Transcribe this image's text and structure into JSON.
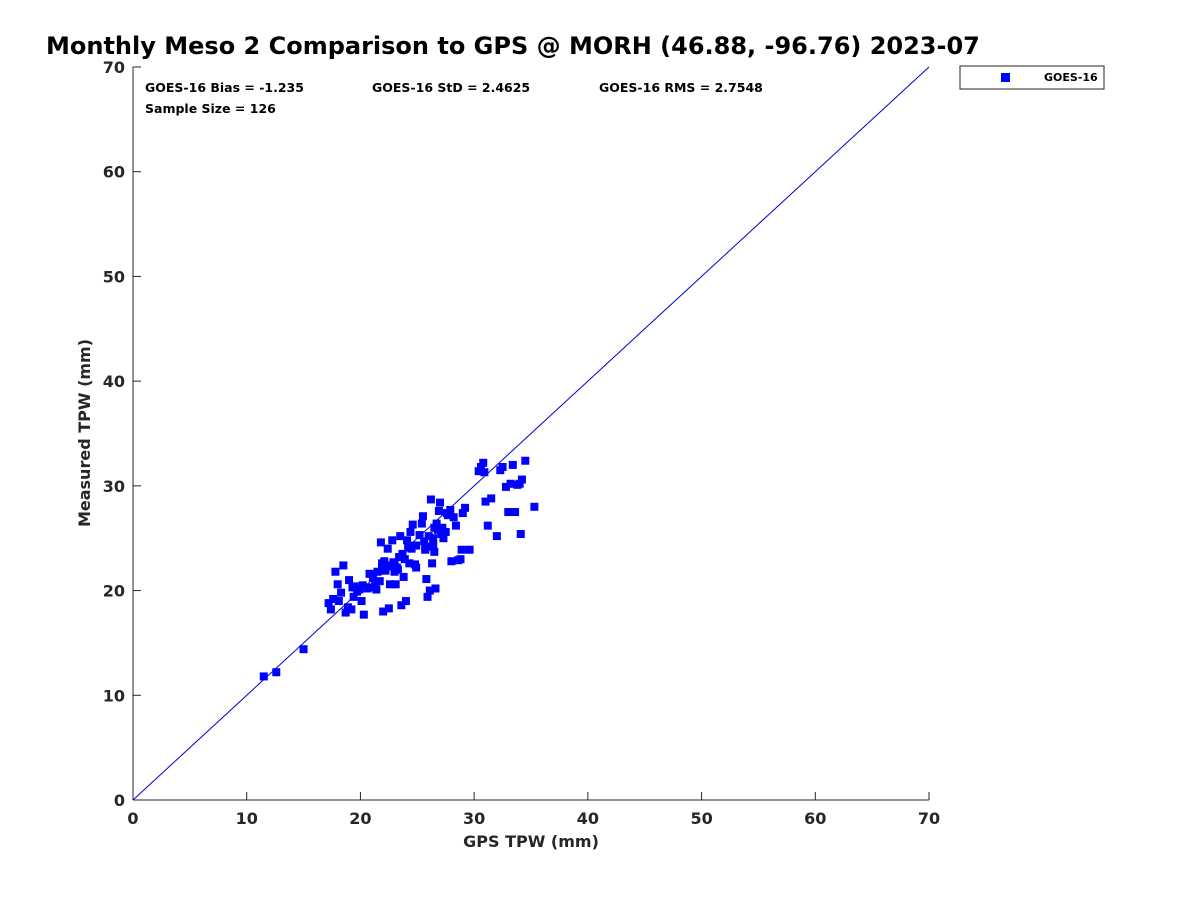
{
  "chart_data": {
    "type": "scatter",
    "title": "Monthly Meso 2 Comparison to GPS @ MORH (46.88, -96.76) 2023-07",
    "xlabel": "GPS TPW (mm)",
    "ylabel": "Measured TPW (mm)",
    "xlim": [
      0,
      70
    ],
    "ylim": [
      0,
      70
    ],
    "xticks": [
      "0",
      "10",
      "20",
      "30",
      "40",
      "50",
      "60",
      "70"
    ],
    "yticks": [
      "0",
      "10",
      "20",
      "30",
      "40",
      "50",
      "60",
      "70"
    ],
    "grid": false,
    "legend_position": "outside-top-right",
    "reference_line": {
      "from": [
        0,
        0
      ],
      "to": [
        70,
        70
      ],
      "color": "#0000cc"
    },
    "stats": {
      "bias": "GOES-16 Bias = -1.235",
      "std": "GOES-16 StD = 2.4625",
      "rms": "GOES-16 RMS = 2.7548",
      "sample": "Sample Size = 126"
    },
    "series": [
      {
        "name": "GOES-16",
        "color": "#0000ff",
        "marker": "square",
        "points": [
          [
            11.5,
            11.8
          ],
          [
            12.6,
            12.2
          ],
          [
            15.0,
            14.4
          ],
          [
            17.2,
            18.8
          ],
          [
            17.4,
            18.2
          ],
          [
            17.6,
            19.2
          ],
          [
            17.8,
            21.8
          ],
          [
            18.0,
            20.6
          ],
          [
            18.1,
            19.0
          ],
          [
            18.3,
            19.8
          ],
          [
            18.5,
            22.4
          ],
          [
            18.7,
            17.9
          ],
          [
            18.9,
            18.4
          ],
          [
            19.0,
            21.0
          ],
          [
            19.2,
            18.2
          ],
          [
            19.4,
            19.4
          ],
          [
            19.5,
            20.4
          ],
          [
            19.7,
            19.9
          ],
          [
            19.9,
            20.1
          ],
          [
            20.1,
            19.0
          ],
          [
            20.2,
            20.5
          ],
          [
            20.3,
            17.7
          ],
          [
            20.6,
            20.2
          ],
          [
            20.8,
            21.6
          ],
          [
            21.0,
            20.3
          ],
          [
            21.1,
            21.2
          ],
          [
            21.3,
            20.7
          ],
          [
            21.4,
            20.1
          ],
          [
            21.5,
            21.8
          ],
          [
            21.7,
            20.9
          ],
          [
            21.8,
            24.6
          ],
          [
            21.9,
            22.1
          ],
          [
            22.0,
            18.0
          ],
          [
            22.1,
            22.8
          ],
          [
            22.2,
            21.9
          ],
          [
            22.3,
            22.4
          ],
          [
            22.4,
            24.0
          ],
          [
            22.5,
            18.3
          ],
          [
            22.6,
            20.6
          ],
          [
            22.7,
            22.3
          ],
          [
            22.8,
            24.8
          ],
          [
            22.9,
            22.7
          ],
          [
            23.0,
            21.8
          ],
          [
            23.1,
            20.6
          ],
          [
            23.2,
            22.2
          ],
          [
            23.3,
            22.0
          ],
          [
            23.4,
            23.2
          ],
          [
            23.5,
            25.2
          ],
          [
            23.6,
            18.6
          ],
          [
            23.7,
            23.5
          ],
          [
            23.8,
            21.3
          ],
          [
            23.9,
            23.0
          ],
          [
            24.0,
            19.0
          ],
          [
            24.1,
            24.8
          ],
          [
            24.3,
            22.6
          ],
          [
            24.4,
            25.6
          ],
          [
            24.5,
            24.0
          ],
          [
            24.6,
            26.3
          ],
          [
            24.7,
            24.3
          ],
          [
            24.8,
            22.5
          ],
          [
            24.9,
            22.2
          ],
          [
            25.2,
            25.3
          ],
          [
            25.4,
            26.4
          ],
          [
            25.5,
            27.1
          ],
          [
            25.6,
            24.7
          ],
          [
            25.7,
            23.9
          ],
          [
            25.8,
            21.1
          ],
          [
            25.9,
            19.4
          ],
          [
            26.0,
            25.2
          ],
          [
            26.1,
            20.0
          ],
          [
            26.2,
            28.7
          ],
          [
            26.3,
            22.6
          ],
          [
            26.4,
            24.3
          ],
          [
            26.5,
            23.7
          ],
          [
            26.6,
            20.2
          ],
          [
            26.7,
            26.4
          ],
          [
            26.8,
            25.8
          ],
          [
            26.9,
            27.6
          ],
          [
            27.0,
            28.4
          ],
          [
            27.1,
            25.4
          ],
          [
            27.2,
            26.0
          ],
          [
            27.3,
            25.0
          ],
          [
            27.5,
            25.6
          ],
          [
            27.7,
            27.2
          ],
          [
            27.9,
            27.7
          ],
          [
            28.0,
            22.8
          ],
          [
            28.2,
            27.0
          ],
          [
            28.4,
            26.2
          ],
          [
            28.6,
            22.9
          ],
          [
            28.8,
            23.0
          ],
          [
            28.9,
            23.9
          ],
          [
            29.0,
            27.4
          ],
          [
            29.2,
            27.9
          ],
          [
            29.6,
            23.9
          ],
          [
            30.4,
            31.4
          ],
          [
            30.6,
            31.8
          ],
          [
            30.8,
            32.2
          ],
          [
            30.9,
            31.3
          ],
          [
            31.0,
            28.5
          ],
          [
            31.2,
            26.2
          ],
          [
            31.5,
            28.8
          ],
          [
            32.0,
            25.2
          ],
          [
            32.3,
            31.5
          ],
          [
            32.5,
            31.8
          ],
          [
            32.8,
            29.9
          ],
          [
            33.0,
            27.5
          ],
          [
            33.2,
            30.2
          ],
          [
            33.4,
            32.0
          ],
          [
            33.6,
            27.5
          ],
          [
            33.8,
            30.1
          ],
          [
            34.0,
            30.2
          ],
          [
            34.1,
            25.4
          ],
          [
            34.2,
            30.6
          ],
          [
            34.5,
            32.4
          ],
          [
            35.3,
            28.0
          ],
          [
            26.2,
            24.2
          ],
          [
            26.4,
            25.0
          ],
          [
            25.7,
            24.0
          ],
          [
            23.0,
            22.6
          ],
          [
            21.9,
            22.6
          ],
          [
            24.2,
            24.1
          ],
          [
            20.7,
            20.3
          ],
          [
            19.3,
            20.3
          ],
          [
            26.5,
            26.0
          ],
          [
            27.6,
            27.4
          ],
          [
            24.9,
            24.3
          ]
        ]
      }
    ]
  }
}
